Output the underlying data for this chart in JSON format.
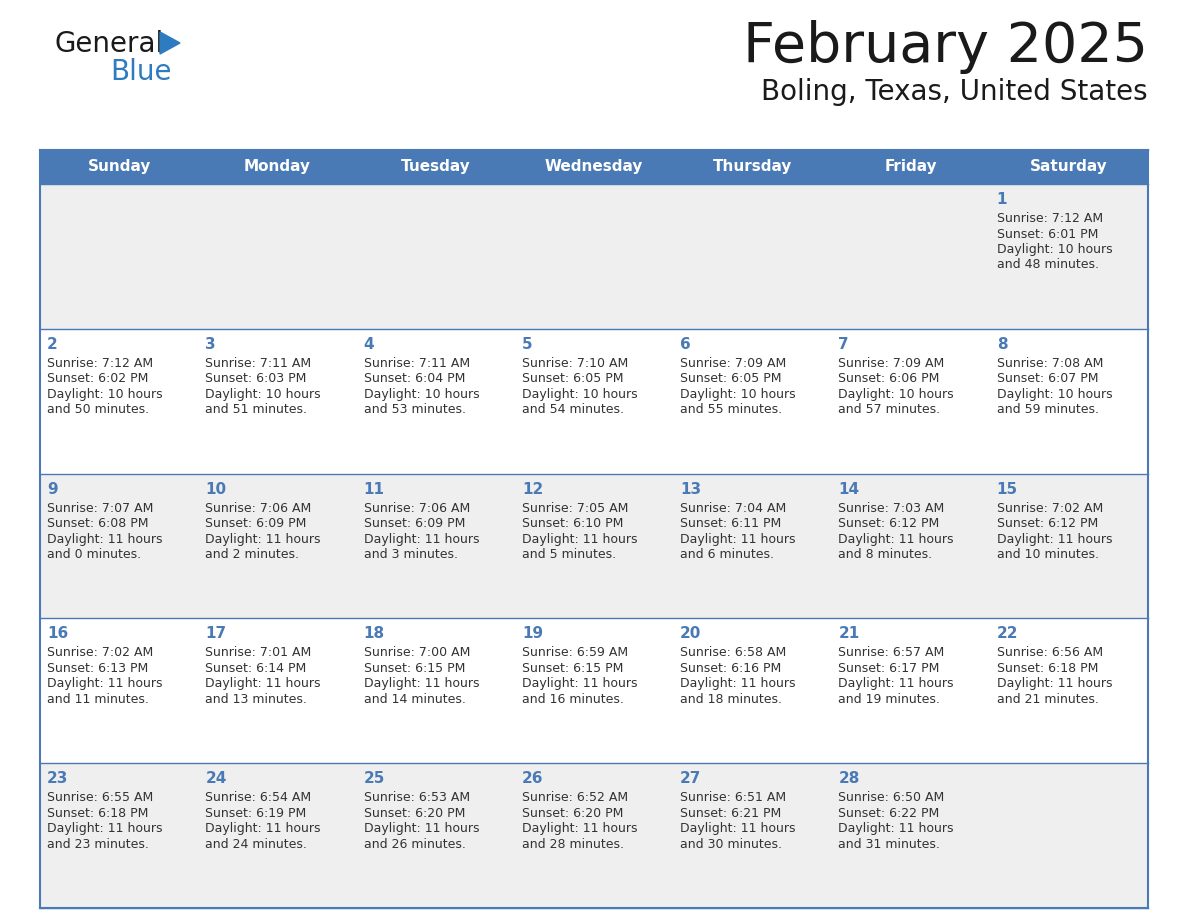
{
  "title": "February 2025",
  "subtitle": "Boling, Texas, United States",
  "header_color": "#4a7ab5",
  "header_text_color": "#ffffff",
  "cell_bg_odd": "#efefef",
  "cell_bg_even": "#ffffff",
  "border_color": "#4a7ab5",
  "day_names": [
    "Sunday",
    "Monday",
    "Tuesday",
    "Wednesday",
    "Thursday",
    "Friday",
    "Saturday"
  ],
  "title_color": "#1a1a1a",
  "subtitle_color": "#1a1a1a",
  "day_number_color": "#4a7ab5",
  "text_color": "#333333",
  "logo_text_color": "#1a1a1a",
  "logo_blue_color": "#2e7bbf",
  "calendar": [
    [
      {
        "day": "",
        "sunrise": "",
        "sunset": "",
        "daylight": ""
      },
      {
        "day": "",
        "sunrise": "",
        "sunset": "",
        "daylight": ""
      },
      {
        "day": "",
        "sunrise": "",
        "sunset": "",
        "daylight": ""
      },
      {
        "day": "",
        "sunrise": "",
        "sunset": "",
        "daylight": ""
      },
      {
        "day": "",
        "sunrise": "",
        "sunset": "",
        "daylight": ""
      },
      {
        "day": "",
        "sunrise": "",
        "sunset": "",
        "daylight": ""
      },
      {
        "day": "1",
        "sunrise": "7:12 AM",
        "sunset": "6:01 PM",
        "daylight": "10 hours\nand 48 minutes."
      }
    ],
    [
      {
        "day": "2",
        "sunrise": "7:12 AM",
        "sunset": "6:02 PM",
        "daylight": "10 hours\nand 50 minutes."
      },
      {
        "day": "3",
        "sunrise": "7:11 AM",
        "sunset": "6:03 PM",
        "daylight": "10 hours\nand 51 minutes."
      },
      {
        "day": "4",
        "sunrise": "7:11 AM",
        "sunset": "6:04 PM",
        "daylight": "10 hours\nand 53 minutes."
      },
      {
        "day": "5",
        "sunrise": "7:10 AM",
        "sunset": "6:05 PM",
        "daylight": "10 hours\nand 54 minutes."
      },
      {
        "day": "6",
        "sunrise": "7:09 AM",
        "sunset": "6:05 PM",
        "daylight": "10 hours\nand 55 minutes."
      },
      {
        "day": "7",
        "sunrise": "7:09 AM",
        "sunset": "6:06 PM",
        "daylight": "10 hours\nand 57 minutes."
      },
      {
        "day": "8",
        "sunrise": "7:08 AM",
        "sunset": "6:07 PM",
        "daylight": "10 hours\nand 59 minutes."
      }
    ],
    [
      {
        "day": "9",
        "sunrise": "7:07 AM",
        "sunset": "6:08 PM",
        "daylight": "11 hours\nand 0 minutes."
      },
      {
        "day": "10",
        "sunrise": "7:06 AM",
        "sunset": "6:09 PM",
        "daylight": "11 hours\nand 2 minutes."
      },
      {
        "day": "11",
        "sunrise": "7:06 AM",
        "sunset": "6:09 PM",
        "daylight": "11 hours\nand 3 minutes."
      },
      {
        "day": "12",
        "sunrise": "7:05 AM",
        "sunset": "6:10 PM",
        "daylight": "11 hours\nand 5 minutes."
      },
      {
        "day": "13",
        "sunrise": "7:04 AM",
        "sunset": "6:11 PM",
        "daylight": "11 hours\nand 6 minutes."
      },
      {
        "day": "14",
        "sunrise": "7:03 AM",
        "sunset": "6:12 PM",
        "daylight": "11 hours\nand 8 minutes."
      },
      {
        "day": "15",
        "sunrise": "7:02 AM",
        "sunset": "6:12 PM",
        "daylight": "11 hours\nand 10 minutes."
      }
    ],
    [
      {
        "day": "16",
        "sunrise": "7:02 AM",
        "sunset": "6:13 PM",
        "daylight": "11 hours\nand 11 minutes."
      },
      {
        "day": "17",
        "sunrise": "7:01 AM",
        "sunset": "6:14 PM",
        "daylight": "11 hours\nand 13 minutes."
      },
      {
        "day": "18",
        "sunrise": "7:00 AM",
        "sunset": "6:15 PM",
        "daylight": "11 hours\nand 14 minutes."
      },
      {
        "day": "19",
        "sunrise": "6:59 AM",
        "sunset": "6:15 PM",
        "daylight": "11 hours\nand 16 minutes."
      },
      {
        "day": "20",
        "sunrise": "6:58 AM",
        "sunset": "6:16 PM",
        "daylight": "11 hours\nand 18 minutes."
      },
      {
        "day": "21",
        "sunrise": "6:57 AM",
        "sunset": "6:17 PM",
        "daylight": "11 hours\nand 19 minutes."
      },
      {
        "day": "22",
        "sunrise": "6:56 AM",
        "sunset": "6:18 PM",
        "daylight": "11 hours\nand 21 minutes."
      }
    ],
    [
      {
        "day": "23",
        "sunrise": "6:55 AM",
        "sunset": "6:18 PM",
        "daylight": "11 hours\nand 23 minutes."
      },
      {
        "day": "24",
        "sunrise": "6:54 AM",
        "sunset": "6:19 PM",
        "daylight": "11 hours\nand 24 minutes."
      },
      {
        "day": "25",
        "sunrise": "6:53 AM",
        "sunset": "6:20 PM",
        "daylight": "11 hours\nand 26 minutes."
      },
      {
        "day": "26",
        "sunrise": "6:52 AM",
        "sunset": "6:20 PM",
        "daylight": "11 hours\nand 28 minutes."
      },
      {
        "day": "27",
        "sunrise": "6:51 AM",
        "sunset": "6:21 PM",
        "daylight": "11 hours\nand 30 minutes."
      },
      {
        "day": "28",
        "sunrise": "6:50 AM",
        "sunset": "6:22 PM",
        "daylight": "11 hours\nand 31 minutes."
      },
      {
        "day": "",
        "sunrise": "",
        "sunset": "",
        "daylight": ""
      }
    ]
  ]
}
